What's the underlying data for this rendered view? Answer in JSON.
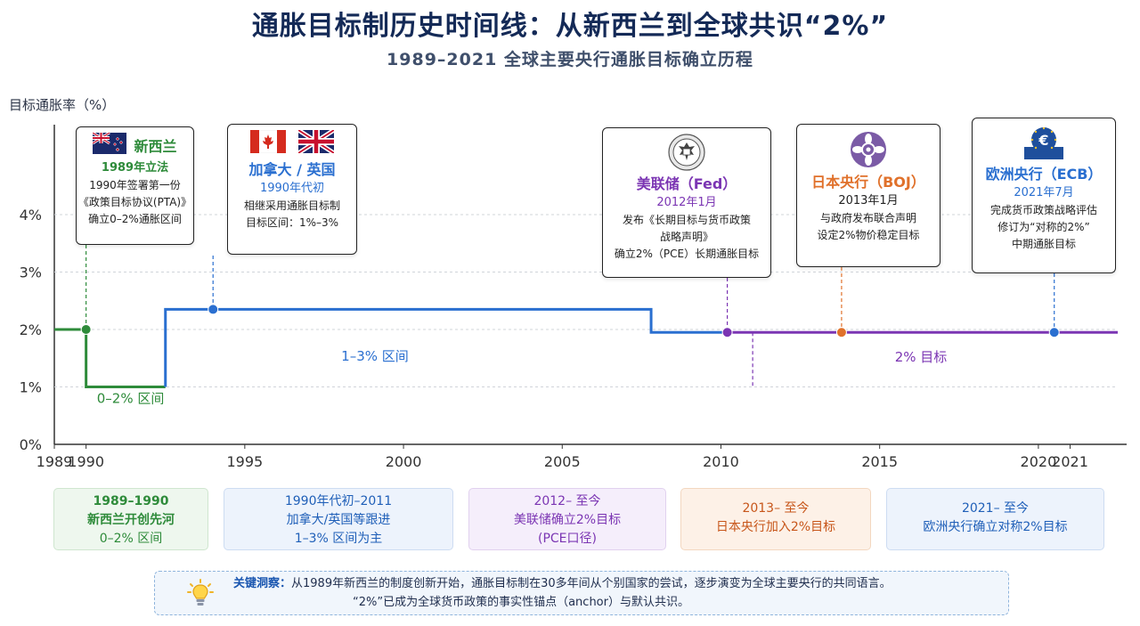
{
  "title": "通胀目标制历史时间线：从新西兰到全球共识“2%”",
  "subtitle": "1989–2021 全球主要央行通胀目标确立历程",
  "chart_data": {
    "type": "line",
    "ylabel": "目标通胀率（%）",
    "x_ticks": [
      "1989",
      "1990",
      "1995",
      "2000",
      "2005",
      "2010",
      "2015",
      "2020",
      "2021"
    ],
    "y_ticks": [
      "0%",
      "1%",
      "2%",
      "3%",
      "4%"
    ],
    "ylim": [
      0,
      4.5
    ],
    "xlim": [
      1989,
      2022.5
    ],
    "series": [
      {
        "color": "#2e8b3a",
        "points": [
          [
            1989,
            2
          ],
          [
            1990,
            2
          ],
          [
            1990,
            1
          ],
          [
            1992.5,
            1
          ]
        ]
      },
      {
        "color": "#2a6fd0",
        "points": [
          [
            1992.5,
            1
          ],
          [
            1992.5,
            2.35
          ],
          [
            2007.8,
            2.35
          ],
          [
            2007.8,
            1.95
          ],
          [
            2010.2,
            1.95
          ]
        ]
      },
      {
        "color": "#7b35b3",
        "points": [
          [
            2010.2,
            1.95
          ],
          [
            2022.5,
            1.95
          ]
        ]
      }
    ],
    "markers": [
      {
        "x": 1990,
        "y": 2,
        "color": "#2e8b3a"
      },
      {
        "x": 1994,
        "y": 2.35,
        "color": "#2a6fd0"
      },
      {
        "x": 2010.2,
        "y": 1.95,
        "color": "#7b35b3"
      },
      {
        "x": 2013.8,
        "y": 1.95,
        "color": "#e0712b"
      },
      {
        "x": 2020.5,
        "y": 1.95,
        "color": "#2a6fd0"
      }
    ],
    "annotations": [
      {
        "text": "0–2% 区间",
        "x": 1991.4,
        "y": 0.72,
        "color": "#2e8b3a"
      },
      {
        "text": "1–3% 区间",
        "x": 1999.1,
        "y": 1.46,
        "color": "#2a6fd0"
      },
      {
        "text": "2% 目标",
        "x": 2016.3,
        "y": 1.44,
        "color": "#7b35b3"
      }
    ]
  },
  "cards": {
    "nz": {
      "name": "新西兰",
      "date": "1989年立法",
      "lines": [
        "1990年签署第一份",
        "《政策目标协议(PTA)》",
        "确立0–2%通胀区间"
      ],
      "color": "#2e8b3a",
      "flag": "new-zealand-flag-icon"
    },
    "ca_uk": {
      "name": "加拿大 / 英国",
      "date": "1990年代初",
      "lines": [
        "相继采用通胀目标制",
        "目标区间：1%–3%"
      ],
      "color": "#2a6fd0",
      "flags": [
        "canada-flag-icon",
        "uk-flag-icon"
      ]
    },
    "fed": {
      "name": "美联储（Fed）",
      "date": "2012年1月",
      "lines": [
        "发布《长期目标与货币政策",
        "战略声明》",
        "确立2%（PCE）长期通胀目标"
      ],
      "color": "#7b35b3",
      "icon": "fed-seal-icon"
    },
    "boj": {
      "name": "日本央行（BOJ）",
      "date": "2013年1月",
      "lines": [
        "与政府发布联合声明",
        "设定2%物价稳定目标"
      ],
      "color": "#e0712b",
      "icon": "boj-emblem-icon"
    },
    "ecb": {
      "name": "欧洲央行（ECB）",
      "date": "2021年7月",
      "lines": [
        "完成货币政策战略评估",
        "修订为“对称的2%”",
        "中期通胀目标"
      ],
      "color": "#2a6fd0",
      "icon": "euro-icon"
    }
  },
  "bands": [
    {
      "lines": [
        "1989–1990",
        "新西兰开创先河",
        "0–2% 区间"
      ],
      "color": "#2e8b3a",
      "bg": "#eef7ee",
      "border": "#cfe6cf"
    },
    {
      "lines": [
        "1990年代初–2011",
        "加拿大/英国等跟进",
        "1–3% 区间为主"
      ],
      "color": "#1f5fb8",
      "bg": "#edf3fc",
      "border": "#cddcf2"
    },
    {
      "lines": [
        "2012– 至今",
        "美联储确立2%目标",
        "(PCE口径)"
      ],
      "color": "#7b35b3",
      "bg": "#f5eefb",
      "border": "#e1d1ef"
    },
    {
      "lines": [
        "2013– 至今",
        "日本央行加入2%目标"
      ],
      "color": "#c7561a",
      "bg": "#fdf1e7",
      "border": "#f3d7c0"
    },
    {
      "lines": [
        "2021– 至今",
        "欧洲央行确立对称2%目标"
      ],
      "color": "#1f5fb8",
      "bg": "#edf3fc",
      "border": "#cddcf2"
    }
  ],
  "insight": {
    "label": "关键洞察：",
    "line1": "从1989年新西兰的制度创新开始，通胀目标制在30多年间从个别国家的尝试，逐步演变为全球主要央行的共同语言。",
    "line2": "“2%”已成为全球货币政策的事实性锚点（anchor）与默认共识。",
    "icon": "lightbulb-icon"
  }
}
